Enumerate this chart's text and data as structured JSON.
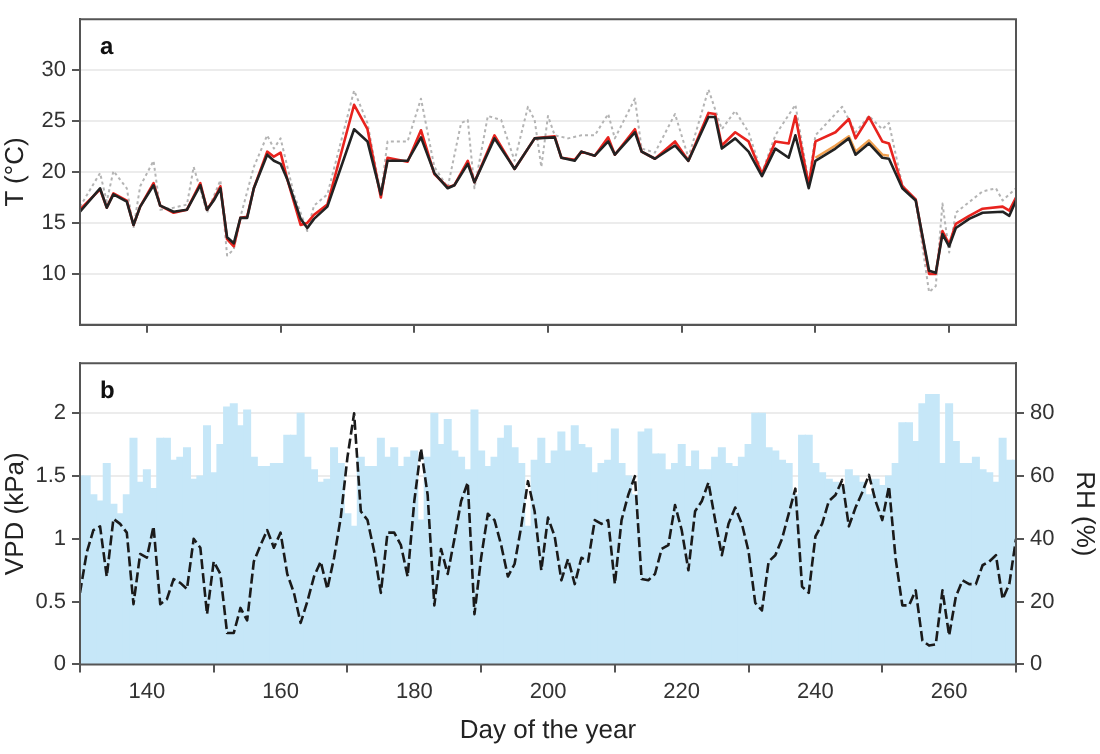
{
  "chart_data": [
    {
      "type": "line",
      "title": "a",
      "ylabel": "T (°C)",
      "xlim": [
        130,
        270
      ],
      "xticks": [
        140,
        160,
        180,
        200,
        220,
        240,
        260
      ],
      "ylim": [
        5,
        35
      ],
      "yticks": [
        10,
        15,
        20,
        25,
        30
      ],
      "grid": "y",
      "tick_labels": "y",
      "marker": "none",
      "series": [
        {
          "color": "#b4b4b4",
          "line_style": "dotted",
          "x": [
            130,
            133,
            134,
            135,
            137,
            138,
            139,
            141,
            142,
            144,
            146,
            147,
            149,
            151,
            152,
            153,
            154,
            156,
            158,
            159,
            160,
            162,
            164,
            165,
            167,
            171,
            173,
            175,
            176,
            179,
            181,
            183,
            185,
            187,
            188,
            189,
            191,
            193,
            195,
            197,
            198,
            199,
            200,
            201,
            203,
            205,
            207,
            209,
            210,
            213,
            214,
            216,
            219,
            221,
            224,
            226,
            228,
            230,
            232,
            234,
            237,
            239,
            240,
            244,
            246,
            248,
            250,
            251,
            253,
            255,
            257,
            258,
            259,
            260,
            261,
            265,
            267,
            268,
            270
          ],
          "values": [
            16.6,
            19.9,
            17.1,
            20.1,
            18.4,
            14.5,
            18.6,
            21.1,
            16.3,
            16.5,
            16.8,
            20.5,
            16,
            19.2,
            11.8,
            12.4,
            15.6,
            20.5,
            23.6,
            22.3,
            23.3,
            17.8,
            14.2,
            16.7,
            17.8,
            28,
            24.8,
            17.8,
            23,
            23,
            27.2,
            20.5,
            18.5,
            24.8,
            25.1,
            18.4,
            25.5,
            25.1,
            21.1,
            26.4,
            25.1,
            20.5,
            25.5,
            23.6,
            23.3,
            23.6,
            23.6,
            25.7,
            23.3,
            27.2,
            22.3,
            21.9,
            25.7,
            21.4,
            28.1,
            24.2,
            26,
            23.9,
            19.9,
            23.6,
            26.6,
            19,
            23.6,
            26.4,
            23.9,
            25.5,
            24.2,
            24.8,
            18.7,
            17.2,
            8.2,
            8.8,
            16.9,
            12.1,
            16,
            18.1,
            18.4,
            17.2,
            18.4
          ]
        },
        {
          "color": "#f0a050",
          "x": [
            240,
            243,
            245,
            246,
            248,
            250,
            251
          ],
          "values": [
            21.4,
            22.6,
            23.5,
            22,
            23.1,
            21.7,
            21.6
          ]
        },
        {
          "color": "#e8231e",
          "x": [
            130,
            133,
            134,
            135,
            137,
            138,
            139,
            141,
            142,
            144,
            146,
            148,
            149,
            150,
            151,
            152,
            153,
            154,
            155,
            156,
            158,
            159,
            160,
            161,
            163,
            164,
            165,
            167,
            171,
            173,
            175,
            176,
            179,
            181,
            183,
            185,
            186,
            188,
            189,
            192,
            195,
            198,
            201,
            202,
            204,
            205,
            207,
            209,
            210,
            213,
            214,
            216,
            219,
            221,
            224,
            225,
            226,
            228,
            230,
            232,
            234,
            236,
            237,
            239,
            240,
            243,
            245,
            246,
            248,
            250,
            251,
            253,
            255,
            257,
            258,
            259,
            260,
            261,
            263,
            265,
            268,
            269,
            270
          ],
          "values": [
            16.3,
            18.3,
            16.5,
            17.9,
            17.2,
            14.8,
            16.6,
            18.9,
            16.7,
            16,
            16.3,
            18.9,
            16.3,
            17.3,
            18.6,
            13.4,
            12.7,
            15.5,
            15.6,
            18.4,
            22,
            21.5,
            21.9,
            19.3,
            14.8,
            15,
            15.8,
            16.8,
            26.6,
            24.2,
            17.5,
            21.4,
            21,
            24.1,
            19.8,
            18.5,
            18.7,
            21.1,
            19,
            23.6,
            20.3,
            23.3,
            23.5,
            21.4,
            21.2,
            22,
            21.6,
            23.4,
            21.7,
            24.2,
            22,
            21.3,
            23,
            21.1,
            25.8,
            25.7,
            22.6,
            23.9,
            23,
            19.8,
            23,
            22.8,
            25.5,
            18.7,
            23,
            23.9,
            25.2,
            23.3,
            25.4,
            23,
            22.8,
            18.6,
            17.3,
            10,
            10,
            14.2,
            12.9,
            14.9,
            15.7,
            16.4,
            16.6,
            16.2,
            17.5
          ]
        },
        {
          "color": "#222222",
          "x": [
            130,
            133,
            134,
            135,
            137,
            138,
            139,
            141,
            142,
            144,
            146,
            148,
            149,
            150,
            151,
            152,
            153,
            154,
            155,
            156,
            158,
            159,
            160,
            161,
            163,
            164,
            165,
            167,
            171,
            173,
            175,
            176,
            179,
            181,
            183,
            185,
            186,
            188,
            189,
            192,
            195,
            198,
            201,
            202,
            204,
            205,
            207,
            209,
            210,
            213,
            214,
            216,
            219,
            221,
            224,
            225,
            226,
            228,
            230,
            232,
            234,
            236,
            237,
            239,
            240,
            243,
            245,
            246,
            248,
            250,
            251,
            253,
            255,
            257,
            258,
            259,
            260,
            261,
            263,
            265,
            268,
            269,
            270
          ],
          "values": [
            16.1,
            18.4,
            16.5,
            17.8,
            17.1,
            14.8,
            16.6,
            18.7,
            16.7,
            16.1,
            16.3,
            18.7,
            16.3,
            17.2,
            18.4,
            13.6,
            13,
            15.5,
            15.5,
            18.4,
            21.7,
            21.1,
            20.8,
            19.3,
            15.4,
            14.5,
            15.4,
            16.6,
            24.2,
            23,
            17.8,
            21.1,
            21.1,
            23.4,
            19.9,
            18.4,
            18.7,
            20.8,
            19,
            23.3,
            20.3,
            23.3,
            23.4,
            21.4,
            21.1,
            22,
            21.6,
            23,
            21.7,
            23.9,
            22,
            21.3,
            22.6,
            21.1,
            25.4,
            25.4,
            22.3,
            23.3,
            22,
            19.6,
            22.3,
            21.4,
            23.6,
            18.4,
            21.1,
            22.3,
            23.3,
            21.7,
            22.8,
            21.4,
            21.3,
            18.4,
            17.2,
            10.3,
            10.1,
            13.9,
            12.7,
            14.5,
            15.4,
            16,
            16.1,
            15.7,
            17.2
          ]
        }
      ]
    },
    {
      "type": "line",
      "title": "b",
      "xlabel": "Day of the year",
      "ylabel": "VPD (kPa)",
      "y2label": "RH (%)",
      "xlim": [
        130,
        270
      ],
      "xticks": [
        140,
        160,
        180,
        200,
        220,
        240,
        260
      ],
      "ylim": [
        0,
        2.4
      ],
      "yticks": [
        0,
        0.5,
        1,
        1.5,
        2
      ],
      "y2lim": [
        0,
        96
      ],
      "y2ticks": [
        0,
        20,
        40,
        60,
        80
      ],
      "grid": "y",
      "marker": "none",
      "x": [
        130,
        131,
        132,
        133,
        134,
        135,
        136,
        137,
        138,
        139,
        140,
        141,
        142,
        143,
        144,
        145,
        146,
        147,
        148,
        149,
        150,
        151,
        152,
        153,
        154,
        155,
        156,
        157,
        158,
        159,
        160,
        161,
        162,
        163,
        164,
        165,
        166,
        167,
        168,
        169,
        170,
        171,
        172,
        173,
        174,
        175,
        176,
        177,
        178,
        179,
        180,
        181,
        182,
        183,
        184,
        185,
        186,
        187,
        188,
        189,
        190,
        191,
        192,
        193,
        194,
        195,
        196,
        197,
        198,
        199,
        200,
        201,
        202,
        203,
        204,
        205,
        206,
        207,
        208,
        209,
        210,
        211,
        212,
        213,
        214,
        215,
        216,
        217,
        218,
        219,
        220,
        221,
        222,
        223,
        224,
        225,
        226,
        227,
        228,
        229,
        230,
        231,
        232,
        233,
        234,
        235,
        236,
        237,
        238,
        239,
        240,
        241,
        242,
        243,
        244,
        245,
        246,
        247,
        248,
        249,
        250,
        251,
        252,
        253,
        254,
        255,
        256,
        257,
        258,
        259,
        260,
        261,
        262,
        263,
        264,
        265,
        266,
        267,
        268,
        269,
        270
      ],
      "series": [
        {
          "type": "bar",
          "axis": "y2",
          "color": "#c6e7f8",
          "values": [
            60,
            60,
            54,
            52,
            64,
            51,
            48,
            54,
            72,
            58,
            62,
            56,
            72,
            72,
            65,
            66,
            69,
            59,
            60,
            76,
            61,
            70,
            82,
            83,
            76,
            81,
            66,
            63,
            63,
            64,
            64,
            73,
            73,
            80,
            66,
            62,
            58,
            59,
            69,
            64,
            48,
            44,
            66,
            63,
            63,
            72,
            66,
            69,
            63,
            66,
            68,
            46,
            66,
            80,
            70,
            78,
            68,
            66,
            62,
            81,
            68,
            63,
            66,
            72,
            76,
            69,
            64,
            44,
            65,
            72,
            64,
            68,
            74,
            68,
            76,
            70,
            69,
            61,
            64,
            65,
            75,
            64,
            60,
            54,
            74,
            75,
            67,
            67,
            62,
            64,
            70,
            63,
            68,
            62,
            62,
            66,
            69,
            64,
            63,
            66,
            70,
            80,
            80,
            69,
            68,
            65,
            64,
            54,
            73,
            73,
            64,
            61,
            59,
            58,
            57,
            62,
            60,
            58,
            54,
            59,
            57,
            60,
            64,
            77,
            77,
            71,
            83,
            86,
            86,
            64,
            83,
            71,
            64,
            64,
            66,
            62,
            61,
            58,
            72,
            65,
            65
          ]
        },
        {
          "color": "#1a1a1a",
          "line_style": "dashed",
          "values": [
            0.57,
            0.89,
            1.07,
            1.1,
            0.7,
            1.16,
            1.12,
            1.05,
            0.48,
            0.88,
            0.85,
            1.1,
            0.48,
            0.52,
            0.68,
            0.65,
            0.6,
            1.0,
            0.93,
            0.4,
            0.82,
            0.72,
            0.25,
            0.25,
            0.45,
            0.35,
            0.82,
            0.95,
            1.07,
            0.93,
            1.05,
            0.72,
            0.57,
            0.33,
            0.5,
            0.7,
            0.82,
            0.6,
            0.85,
            1.17,
            1.65,
            2.0,
            1.22,
            1.15,
            0.9,
            0.57,
            1.05,
            1.05,
            0.95,
            0.7,
            1.3,
            1.72,
            1.35,
            0.47,
            0.92,
            0.72,
            1.0,
            1.3,
            1.45,
            0.4,
            0.85,
            1.2,
            1.15,
            0.95,
            0.7,
            0.8,
            1.1,
            1.46,
            1.22,
            0.75,
            1.17,
            1.02,
            0.67,
            0.84,
            0.64,
            0.85,
            0.82,
            1.15,
            1.12,
            1.15,
            0.64,
            1.15,
            1.35,
            1.5,
            0.68,
            0.67,
            0.72,
            0.92,
            0.95,
            1.27,
            1.07,
            0.75,
            1.22,
            1.3,
            1.45,
            1.15,
            0.87,
            1.12,
            1.25,
            1.12,
            0.9,
            0.49,
            0.43,
            0.82,
            0.87,
            1.0,
            1.2,
            1.4,
            0.62,
            0.57,
            1.02,
            1.12,
            1.3,
            1.35,
            1.47,
            1.1,
            1.25,
            1.37,
            1.51,
            1.3,
            1.15,
            1.42,
            0.84,
            0.47,
            0.47,
            0.59,
            0.19,
            0.15,
            0.16,
            0.59,
            0.23,
            0.54,
            0.67,
            0.64,
            0.64,
            0.79,
            0.82,
            0.87,
            0.52,
            0.64,
            1.0
          ]
        }
      ]
    }
  ]
}
